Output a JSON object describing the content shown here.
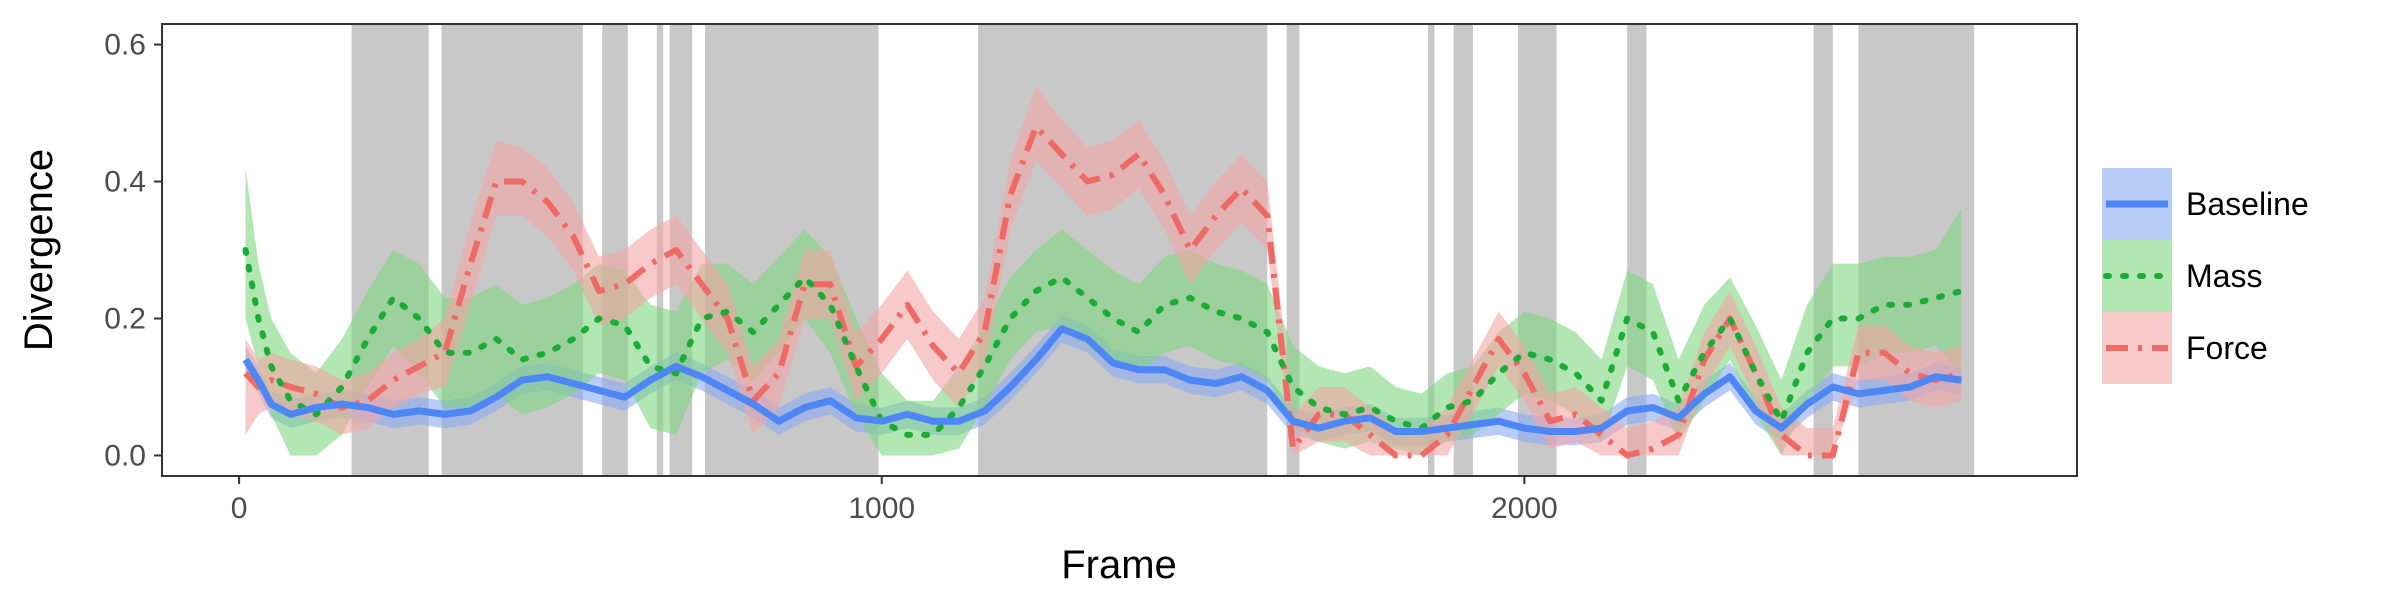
{
  "chart_data": {
    "type": "line",
    "xlabel": "Frame",
    "ylabel": "Divergence",
    "xlim": [
      -120,
      2860
    ],
    "ylim": [
      -0.03,
      0.63
    ],
    "xticks": [
      0,
      1000,
      2000
    ],
    "xtick_labels": [
      "0",
      "1000",
      "2000"
    ],
    "yticks": [
      0.0,
      0.2,
      0.4,
      0.6
    ],
    "ytick_labels": [
      "0.0",
      "0.2",
      "0.4",
      "0.6"
    ],
    "grid": false,
    "legend_position": "right",
    "shaded_regions": [
      [
        175,
        295
      ],
      [
        315,
        535
      ],
      [
        565,
        605
      ],
      [
        650,
        660
      ],
      [
        670,
        705
      ],
      [
        725,
        995
      ],
      [
        1150,
        1600
      ],
      [
        1630,
        1650
      ],
      [
        1850,
        1860
      ],
      [
        1890,
        1920
      ],
      [
        1990,
        2050
      ],
      [
        2160,
        2190
      ],
      [
        2450,
        2480
      ],
      [
        2520,
        2700
      ]
    ],
    "x": [
      10,
      30,
      50,
      80,
      120,
      160,
      200,
      240,
      280,
      320,
      360,
      400,
      440,
      480,
      520,
      560,
      600,
      640,
      680,
      720,
      760,
      800,
      840,
      880,
      920,
      960,
      1000,
      1040,
      1080,
      1120,
      1160,
      1200,
      1240,
      1280,
      1320,
      1360,
      1400,
      1440,
      1480,
      1520,
      1560,
      1600,
      1640,
      1680,
      1720,
      1760,
      1800,
      1840,
      1880,
      1920,
      1960,
      2000,
      2040,
      2080,
      2120,
      2160,
      2200,
      2240,
      2280,
      2320,
      2360,
      2400,
      2440,
      2480,
      2520,
      2560,
      2600,
      2640,
      2680
    ],
    "series": [
      {
        "name": "Baseline",
        "color": "#4d86f5",
        "band_color": "#8aaaf2",
        "dash": "solid",
        "values": [
          0.14,
          0.11,
          0.075,
          0.06,
          0.07,
          0.075,
          0.07,
          0.06,
          0.065,
          0.06,
          0.065,
          0.085,
          0.11,
          0.115,
          0.105,
          0.095,
          0.085,
          0.11,
          0.13,
          0.115,
          0.095,
          0.075,
          0.05,
          0.07,
          0.08,
          0.055,
          0.05,
          0.06,
          0.05,
          0.05,
          0.065,
          0.1,
          0.14,
          0.185,
          0.17,
          0.135,
          0.125,
          0.125,
          0.11,
          0.105,
          0.115,
          0.095,
          0.05,
          0.04,
          0.05,
          0.055,
          0.035,
          0.035,
          0.04,
          0.045,
          0.05,
          0.04,
          0.035,
          0.035,
          0.04,
          0.065,
          0.07,
          0.055,
          0.09,
          0.115,
          0.065,
          0.04,
          0.075,
          0.1,
          0.09,
          0.095,
          0.1,
          0.115,
          0.11
        ],
        "lower": [
          0.12,
          0.09,
          0.055,
          0.04,
          0.05,
          0.055,
          0.05,
          0.04,
          0.045,
          0.04,
          0.045,
          0.065,
          0.09,
          0.095,
          0.085,
          0.075,
          0.065,
          0.09,
          0.11,
          0.095,
          0.075,
          0.055,
          0.03,
          0.05,
          0.06,
          0.035,
          0.03,
          0.04,
          0.03,
          0.03,
          0.045,
          0.08,
          0.12,
          0.165,
          0.15,
          0.115,
          0.105,
          0.105,
          0.09,
          0.085,
          0.095,
          0.075,
          0.03,
          0.02,
          0.03,
          0.035,
          0.015,
          0.015,
          0.02,
          0.025,
          0.03,
          0.02,
          0.015,
          0.015,
          0.02,
          0.045,
          0.05,
          0.035,
          0.07,
          0.095,
          0.045,
          0.02,
          0.055,
          0.08,
          0.07,
          0.075,
          0.08,
          0.095,
          0.09
        ],
        "upper": [
          0.16,
          0.13,
          0.095,
          0.08,
          0.09,
          0.095,
          0.09,
          0.08,
          0.085,
          0.08,
          0.085,
          0.105,
          0.13,
          0.135,
          0.125,
          0.115,
          0.105,
          0.13,
          0.15,
          0.135,
          0.115,
          0.095,
          0.07,
          0.09,
          0.1,
          0.075,
          0.07,
          0.08,
          0.07,
          0.07,
          0.085,
          0.12,
          0.16,
          0.205,
          0.19,
          0.155,
          0.145,
          0.145,
          0.13,
          0.125,
          0.135,
          0.115,
          0.07,
          0.06,
          0.07,
          0.075,
          0.055,
          0.055,
          0.06,
          0.065,
          0.07,
          0.06,
          0.055,
          0.055,
          0.06,
          0.085,
          0.09,
          0.075,
          0.11,
          0.135,
          0.085,
          0.06,
          0.095,
          0.12,
          0.11,
          0.115,
          0.12,
          0.135,
          0.13
        ]
      },
      {
        "name": "Mass",
        "color": "#1aac35",
        "band_color": "#7fd67f",
        "dash": "dotted",
        "values": [
          0.3,
          0.2,
          0.13,
          0.08,
          0.06,
          0.1,
          0.17,
          0.23,
          0.2,
          0.15,
          0.15,
          0.17,
          0.14,
          0.15,
          0.17,
          0.2,
          0.19,
          0.13,
          0.12,
          0.2,
          0.21,
          0.18,
          0.22,
          0.26,
          0.22,
          0.13,
          0.05,
          0.03,
          0.03,
          0.07,
          0.13,
          0.2,
          0.24,
          0.26,
          0.23,
          0.2,
          0.18,
          0.22,
          0.23,
          0.21,
          0.2,
          0.18,
          0.1,
          0.07,
          0.06,
          0.07,
          0.05,
          0.04,
          0.07,
          0.08,
          0.12,
          0.15,
          0.14,
          0.12,
          0.08,
          0.2,
          0.18,
          0.08,
          0.15,
          0.2,
          0.12,
          0.05,
          0.15,
          0.2,
          0.2,
          0.22,
          0.22,
          0.23,
          0.24
        ],
        "lower": [
          0.2,
          0.13,
          0.06,
          0.0,
          0.0,
          0.03,
          0.1,
          0.16,
          0.12,
          0.07,
          0.07,
          0.09,
          0.06,
          0.07,
          0.09,
          0.12,
          0.11,
          0.04,
          0.03,
          0.12,
          0.14,
          0.11,
          0.15,
          0.2,
          0.15,
          0.06,
          0.0,
          0.0,
          0.0,
          0.01,
          0.07,
          0.14,
          0.18,
          0.19,
          0.16,
          0.13,
          0.12,
          0.15,
          0.16,
          0.14,
          0.13,
          0.11,
          0.04,
          0.02,
          0.01,
          0.02,
          0.01,
          0.0,
          0.02,
          0.03,
          0.06,
          0.09,
          0.08,
          0.06,
          0.02,
          0.13,
          0.11,
          0.02,
          0.08,
          0.14,
          0.06,
          0.0,
          0.08,
          0.13,
          0.13,
          0.15,
          0.15,
          0.16,
          0.12
        ],
        "upper": [
          0.42,
          0.28,
          0.2,
          0.15,
          0.12,
          0.17,
          0.24,
          0.3,
          0.28,
          0.23,
          0.23,
          0.25,
          0.22,
          0.23,
          0.25,
          0.28,
          0.27,
          0.22,
          0.21,
          0.28,
          0.28,
          0.25,
          0.29,
          0.33,
          0.29,
          0.2,
          0.12,
          0.08,
          0.08,
          0.13,
          0.19,
          0.26,
          0.3,
          0.33,
          0.3,
          0.27,
          0.25,
          0.29,
          0.3,
          0.28,
          0.27,
          0.25,
          0.16,
          0.13,
          0.12,
          0.13,
          0.1,
          0.09,
          0.12,
          0.13,
          0.18,
          0.21,
          0.2,
          0.18,
          0.14,
          0.27,
          0.25,
          0.14,
          0.22,
          0.26,
          0.19,
          0.11,
          0.22,
          0.28,
          0.28,
          0.29,
          0.29,
          0.3,
          0.36
        ]
      },
      {
        "name": "Force",
        "color": "#f06a65",
        "band_color": "#f4a5a5",
        "dash": "dashdot",
        "values": [
          0.12,
          0.1,
          0.11,
          0.1,
          0.09,
          0.07,
          0.08,
          0.11,
          0.13,
          0.15,
          0.28,
          0.4,
          0.4,
          0.37,
          0.32,
          0.24,
          0.25,
          0.28,
          0.3,
          0.25,
          0.2,
          0.08,
          0.12,
          0.25,
          0.25,
          0.13,
          0.17,
          0.22,
          0.16,
          0.12,
          0.18,
          0.38,
          0.48,
          0.44,
          0.4,
          0.41,
          0.44,
          0.38,
          0.3,
          0.35,
          0.39,
          0.35,
          0.01,
          0.06,
          0.06,
          0.03,
          0.0,
          0.0,
          0.03,
          0.1,
          0.17,
          0.12,
          0.05,
          0.06,
          0.03,
          0.0,
          0.01,
          0.03,
          0.14,
          0.2,
          0.12,
          0.03,
          0.0,
          0.0,
          0.15,
          0.15,
          0.12,
          0.11,
          0.12
        ],
        "lower": [
          0.03,
          0.06,
          0.07,
          0.06,
          0.05,
          0.03,
          0.04,
          0.07,
          0.09,
          0.1,
          0.22,
          0.35,
          0.35,
          0.32,
          0.27,
          0.19,
          0.2,
          0.23,
          0.25,
          0.2,
          0.15,
          0.03,
          0.07,
          0.2,
          0.2,
          0.08,
          0.12,
          0.17,
          0.11,
          0.07,
          0.13,
          0.33,
          0.43,
          0.39,
          0.35,
          0.36,
          0.39,
          0.33,
          0.25,
          0.3,
          0.34,
          0.3,
          0.0,
          0.02,
          0.02,
          0.0,
          0.0,
          0.0,
          0.0,
          0.06,
          0.13,
          0.08,
          0.01,
          0.02,
          0.0,
          0.0,
          0.0,
          0.0,
          0.1,
          0.16,
          0.08,
          0.0,
          0.0,
          0.0,
          0.11,
          0.11,
          0.08,
          0.07,
          0.08
        ],
        "upper": [
          0.17,
          0.14,
          0.15,
          0.14,
          0.13,
          0.11,
          0.12,
          0.15,
          0.17,
          0.2,
          0.34,
          0.46,
          0.45,
          0.42,
          0.37,
          0.29,
          0.3,
          0.33,
          0.35,
          0.3,
          0.25,
          0.13,
          0.17,
          0.3,
          0.3,
          0.18,
          0.22,
          0.27,
          0.21,
          0.17,
          0.23,
          0.43,
          0.54,
          0.49,
          0.45,
          0.46,
          0.49,
          0.43,
          0.35,
          0.4,
          0.44,
          0.4,
          0.06,
          0.1,
          0.1,
          0.07,
          0.04,
          0.04,
          0.07,
          0.14,
          0.21,
          0.16,
          0.09,
          0.1,
          0.07,
          0.04,
          0.05,
          0.07,
          0.18,
          0.24,
          0.16,
          0.07,
          0.04,
          0.04,
          0.19,
          0.19,
          0.16,
          0.15,
          0.16
        ]
      }
    ]
  }
}
